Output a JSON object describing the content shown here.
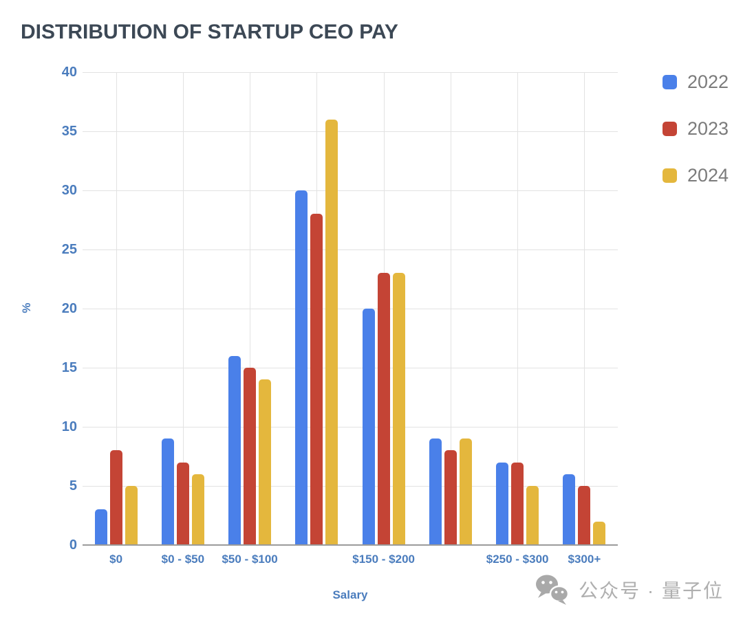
{
  "title": "DISTRIBUTION OF STARTUP CEO PAY",
  "colors": {
    "background": "#FFFFFF",
    "title_text": "#3C4855",
    "axis_text": "#4A7CBD",
    "legend_text": "#7B7B7B",
    "gridline": "#E2E2E2",
    "baseline": "#9A9A9A",
    "watermark": "#AFAFAF",
    "series_2022": "#4A80E9",
    "series_2023": "#C44435",
    "series_2024": "#E4B73D"
  },
  "chart_data": {
    "type": "bar",
    "title": "DISTRIBUTION OF STARTUP CEO PAY",
    "xlabel": "Salary",
    "ylabel": "%",
    "ylim": [
      0,
      40
    ],
    "ytick_step": 5,
    "grid": true,
    "legend_position": "top-right",
    "categories": [
      "$0",
      "$0 - $50",
      "$50 - $100",
      "",
      "$150 - $200",
      "",
      "$250 - $300",
      "$300+"
    ],
    "series": [
      {
        "name": "2022",
        "color": "#4A80E9",
        "values": [
          3,
          9,
          16,
          30,
          20,
          9,
          7,
          6
        ]
      },
      {
        "name": "2023",
        "color": "#C44435",
        "values": [
          8,
          7,
          15,
          28,
          23,
          8,
          7,
          5
        ]
      },
      {
        "name": "2024",
        "color": "#E4B73D",
        "values": [
          5,
          6,
          14,
          36,
          23,
          9,
          5,
          2
        ]
      }
    ]
  },
  "legend": {
    "items": [
      {
        "label": "2022",
        "color": "#4A80E9"
      },
      {
        "label": "2023",
        "color": "#C44435"
      },
      {
        "label": "2024",
        "color": "#E4B73D"
      }
    ]
  },
  "watermark": {
    "text": "公众号 · 量子位",
    "icon": "wechat-icon"
  }
}
